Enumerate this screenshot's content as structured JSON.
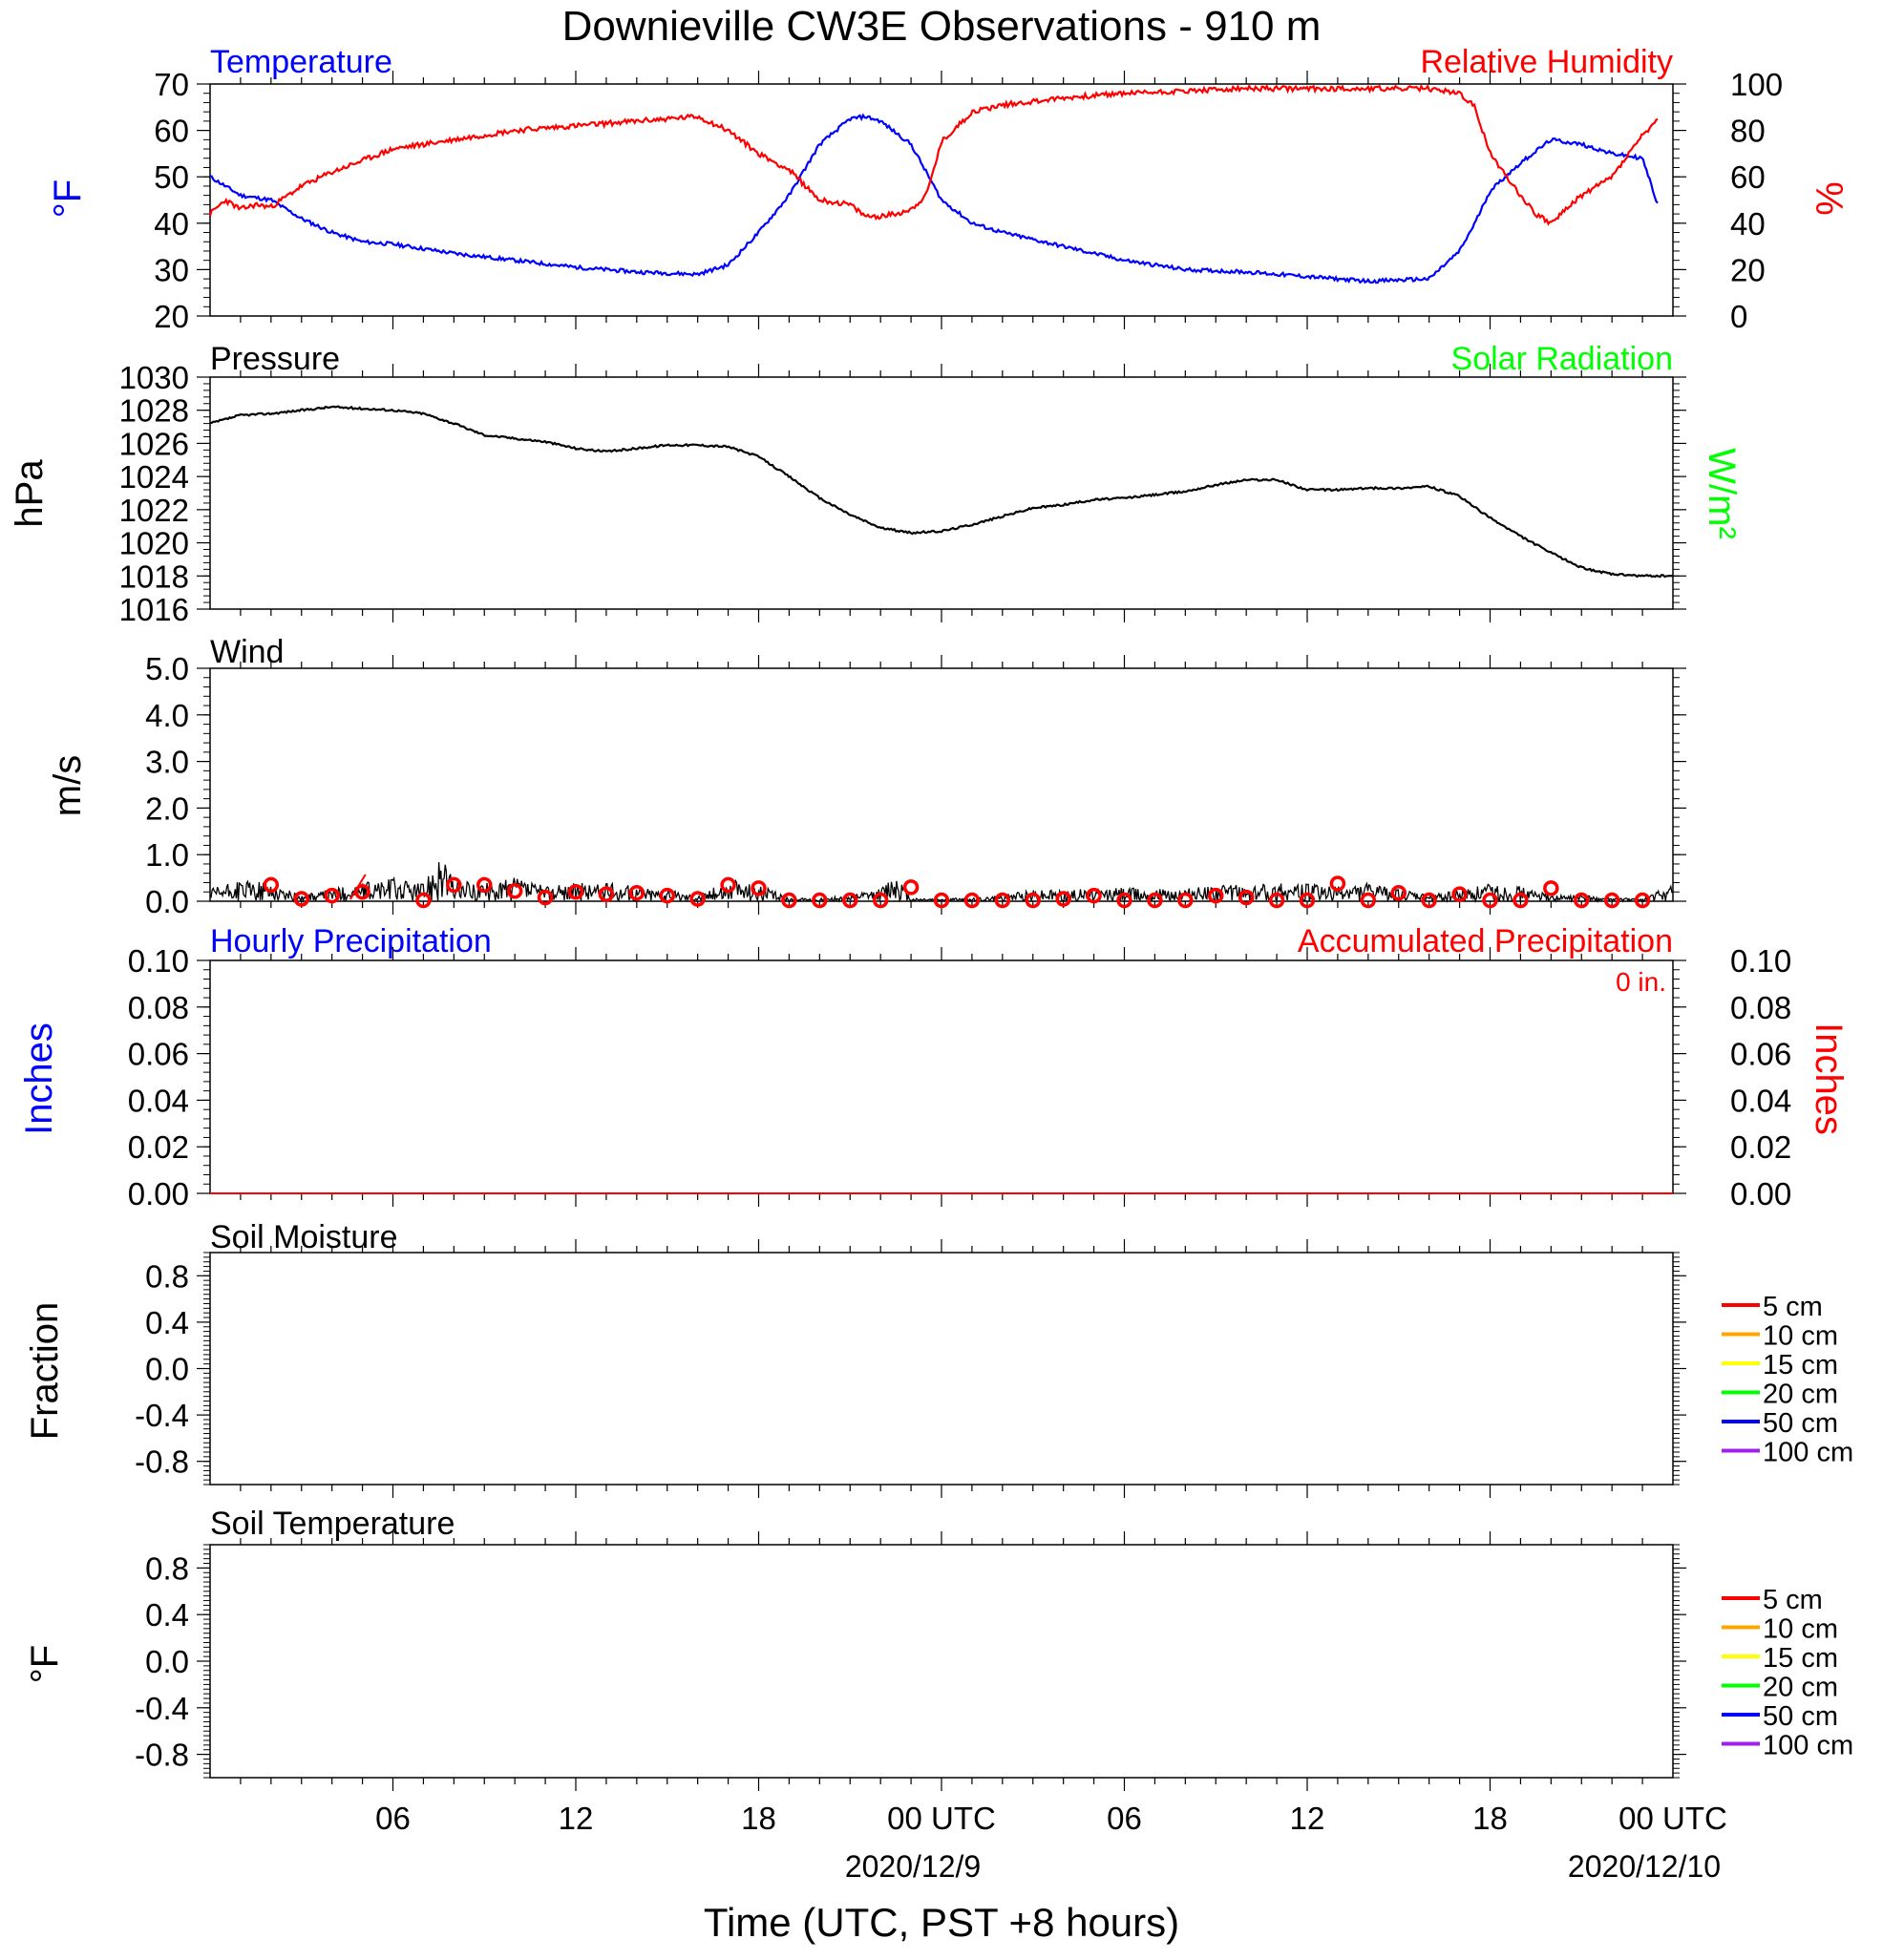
{
  "title": "Downieville CW3E Observations - 910 m",
  "colors": {
    "temp": "#0000ff",
    "rh": "#ff0000",
    "black": "#000000",
    "solar": "#00ff00",
    "precip_hourly": "#0000ff",
    "precip_acc": "#ff0000"
  },
  "panels": {
    "temp_rh": {
      "left_title": "Temperature",
      "right_title": "Relative Humidity",
      "left_ylabel": "°F",
      "right_ylabel": "%",
      "left_ticks": [
        "70",
        "60",
        "50",
        "40",
        "30",
        "20"
      ],
      "right_ticks": [
        "100",
        "80",
        "60",
        "40",
        "20",
        "0"
      ]
    },
    "pressure": {
      "left_title": "Pressure",
      "right_title": "Solar Radiation",
      "left_ylabel": "hPa",
      "right_ylabel": "W/m²",
      "left_ticks": [
        "1030",
        "1028",
        "1026",
        "1024",
        "1022",
        "1020",
        "1018",
        "1016"
      ]
    },
    "wind": {
      "left_title": "Wind",
      "left_ylabel": "m/s",
      "left_ticks": [
        "5.0",
        "4.0",
        "3.0",
        "2.0",
        "1.0",
        "0.0"
      ]
    },
    "precip": {
      "left_title": "Hourly Precipitation",
      "right_title": "Accumulated Precipitation",
      "total_label": "0 in.",
      "left_ylabel": "Inches",
      "right_ylabel": "Inches",
      "left_ticks": [
        "0.10",
        "0.08",
        "0.06",
        "0.04",
        "0.02",
        "0.00"
      ],
      "right_ticks": [
        "0.10",
        "0.08",
        "0.06",
        "0.04",
        "0.02",
        "0.00"
      ]
    },
    "soil_moisture": {
      "left_title": "Soil Moisture",
      "left_ylabel": "Fraction",
      "left_ticks": [
        "0.8",
        "0.4",
        "0.0",
        "-0.4",
        "-0.8"
      ]
    },
    "soil_temp": {
      "left_title": "Soil Temperature",
      "left_ylabel": "°F",
      "left_ticks": [
        "0.8",
        "0.4",
        "0.0",
        "-0.4",
        "-0.8"
      ]
    }
  },
  "legend": {
    "items": [
      {
        "label": "5 cm",
        "color": "#ff0000"
      },
      {
        "label": "10 cm",
        "color": "#ffa500"
      },
      {
        "label": "15 cm",
        "color": "#ffff00"
      },
      {
        "label": "20 cm",
        "color": "#00ff00"
      },
      {
        "label": "50 cm",
        "color": "#0000ff"
      },
      {
        "label": "100 cm",
        "color": "#a020f0"
      }
    ]
  },
  "x_axis": {
    "ticks": [
      "06",
      "12",
      "18",
      "00 UTC",
      "06",
      "12",
      "18",
      "00 UTC"
    ],
    "dates": [
      "2020/12/9",
      "2020/12/10"
    ],
    "label": "Time (UTC, PST +8 hours)"
  },
  "chart_data": [
    {
      "type": "line",
      "title": "Temperature",
      "units": "°F",
      "ylim": [
        20,
        70
      ],
      "x_hours": [
        0,
        1,
        2,
        3,
        4,
        5,
        6,
        8,
        10,
        12,
        14,
        16,
        17,
        18,
        19,
        20,
        21,
        21.5,
        22,
        23,
        24,
        25,
        26,
        28,
        30,
        32,
        34,
        36,
        38,
        40,
        41,
        41.5,
        42,
        43,
        44,
        45,
        46,
        47,
        47.5
      ],
      "values": [
        50,
        46,
        45,
        41,
        38,
        36,
        35.5,
        33.5,
        32,
        30.5,
        29.5,
        29,
        31,
        38,
        46,
        57,
        62.5,
        63,
        62,
        57,
        45,
        40,
        38,
        35,
        32,
        30,
        29.5,
        28.5,
        27.5,
        28,
        34,
        40,
        47,
        53,
        58,
        57,
        55,
        54,
        44
      ]
    },
    {
      "type": "line",
      "title": "Relative Humidity",
      "units": "%",
      "ylim": [
        0,
        100
      ],
      "x_hours": [
        0,
        0.5,
        1,
        1.5,
        2,
        3,
        4,
        5,
        6,
        8,
        10,
        12,
        14,
        15,
        16,
        17,
        18,
        19,
        20,
        20.5,
        21,
        21.5,
        22,
        22.5,
        23,
        23.5,
        24,
        25,
        26,
        28,
        30,
        32,
        34,
        36,
        38,
        40,
        41,
        41.5,
        42,
        43,
        43.5,
        44,
        45,
        46,
        47,
        47.5
      ],
      "values": [
        44,
        50,
        46,
        48,
        47,
        56,
        62,
        67,
        72,
        76,
        80,
        82,
        84,
        85,
        86,
        80,
        70,
        63,
        50,
        49,
        48,
        43,
        43,
        44,
        46,
        52,
        75,
        88,
        91,
        94,
        96,
        97,
        98,
        98,
        98,
        98,
        96,
        90,
        70,
        52,
        44,
        40,
        52,
        60,
        78,
        84
      ]
    },
    {
      "type": "line",
      "title": "Pressure",
      "units": "hPa",
      "ylim": [
        1016,
        1030
      ],
      "x_hours": [
        0,
        1,
        2,
        3,
        4,
        5,
        6,
        7,
        8,
        9,
        10,
        11,
        12,
        13,
        14,
        15,
        16,
        17,
        18,
        19,
        20,
        21,
        22,
        23,
        24,
        25,
        26,
        27,
        28,
        29,
        30,
        31,
        32,
        33,
        34,
        35,
        36,
        37,
        38,
        39,
        40,
        41,
        42,
        43,
        44,
        45,
        46,
        47,
        48
      ],
      "values": [
        1027.2,
        1027.7,
        1027.8,
        1028.0,
        1028.2,
        1028.1,
        1028.0,
        1027.8,
        1027.2,
        1026.5,
        1026.3,
        1026.1,
        1025.7,
        1025.5,
        1025.7,
        1025.9,
        1025.9,
        1025.8,
        1025.2,
        1024.0,
        1022.7,
        1021.7,
        1020.9,
        1020.6,
        1020.7,
        1021.1,
        1021.6,
        1022.1,
        1022.3,
        1022.6,
        1022.7,
        1022.9,
        1023.1,
        1023.5,
        1023.8,
        1023.8,
        1023.2,
        1023.2,
        1023.3,
        1023.3,
        1023.4,
        1022.8,
        1021.5,
        1020.4,
        1019.4,
        1018.5,
        1018.1,
        1018.0,
        1018.0
      ]
    },
    {
      "type": "line",
      "title": "Wind",
      "units": "m/s",
      "ylim": [
        0,
        5
      ],
      "x_hours": [
        0,
        1,
        2,
        3,
        4,
        5,
        6,
        7,
        7.5,
        8,
        9,
        10,
        11,
        12,
        13,
        14,
        15,
        16,
        17,
        18,
        19,
        20,
        21,
        22,
        22.5,
        23,
        24,
        25,
        26,
        27,
        28,
        29,
        30,
        31,
        32,
        33,
        34,
        35,
        36,
        37,
        38,
        39,
        40,
        41,
        42,
        43,
        44,
        45,
        46,
        47,
        48
      ],
      "values": [
        0.2,
        0.35,
        0.3,
        0.1,
        0.2,
        0.3,
        0.4,
        0.3,
        0.9,
        0.35,
        0.3,
        0.4,
        0.25,
        0.3,
        0.3,
        0.25,
        0.2,
        0.1,
        0.35,
        0.3,
        0.05,
        0.05,
        0.1,
        0.2,
        0.5,
        0.05,
        0.05,
        0.05,
        0.1,
        0.2,
        0.2,
        0.2,
        0.25,
        0.2,
        0.2,
        0.3,
        0.25,
        0.3,
        0.3,
        0.25,
        0.3,
        0.2,
        0.1,
        0.2,
        0.3,
        0.25,
        0.1,
        0.1,
        0.05,
        0.05,
        0.3
      ],
      "hourly_markers_x": [
        2,
        3,
        4,
        5,
        7,
        8,
        9,
        10,
        11,
        12,
        13,
        14,
        15,
        16,
        17,
        18,
        19,
        20,
        21,
        22,
        23,
        24,
        25,
        26,
        27,
        28,
        29,
        30,
        31,
        32,
        33,
        34,
        35,
        36,
        37,
        38,
        39,
        40,
        41,
        42,
        43,
        44,
        45,
        46,
        47
      ],
      "hourly_markers": [
        0.35,
        0.05,
        0.12,
        0.2,
        0.02,
        0.35,
        0.35,
        0.22,
        0.08,
        0.2,
        0.15,
        0.18,
        0.12,
        0.05,
        0.35,
        0.28,
        0.02,
        0.02,
        0.02,
        0.02,
        0.3,
        0.02,
        0.02,
        0.02,
        0.02,
        0.05,
        0.12,
        0.02,
        0.02,
        0.02,
        0.12,
        0.08,
        0.02,
        0.02,
        0.38,
        0.02,
        0.18,
        0.02,
        0.15,
        0.02,
        0.02,
        0.28,
        0.02,
        0.02,
        0.02
      ]
    },
    {
      "type": "line",
      "title": "Hourly Precipitation",
      "units": "Inches",
      "ylim": [
        0,
        0.1
      ],
      "x_hours": [
        0,
        48
      ],
      "values": [
        0,
        0
      ]
    },
    {
      "type": "line",
      "title": "Accumulated Precipitation",
      "units": "Inches",
      "ylim": [
        0,
        0.1
      ],
      "x_hours": [
        0,
        48
      ],
      "values": [
        0,
        0
      ]
    }
  ]
}
